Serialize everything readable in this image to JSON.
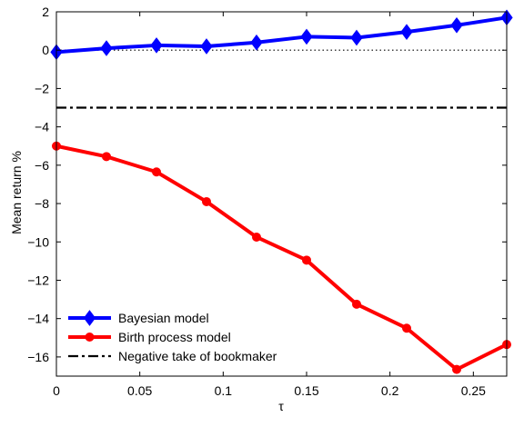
{
  "chart_data": {
    "type": "line",
    "xlabel": "τ",
    "ylabel": "Mean return %",
    "xlim": [
      0,
      0.27
    ],
    "ylim": [
      -17,
      2
    ],
    "xticks": [
      0,
      0.05,
      0.1,
      0.15,
      0.2,
      0.25
    ],
    "xtick_labels": [
      "0",
      "0.05",
      "0.1",
      "0.15",
      "0.2",
      "0.25"
    ],
    "yticks": [
      2,
      0,
      -2,
      -4,
      -6,
      -8,
      -10,
      -12,
      -14,
      -16
    ],
    "ytick_labels": [
      "2",
      "0",
      "−2",
      "−4",
      "−6",
      "−8",
      "−10",
      "−12",
      "−14",
      "−16"
    ],
    "legend_position": "bottom-left",
    "grid": false,
    "series": [
      {
        "name": "Bayesian model",
        "color": "#0000ff",
        "marker": "diamond",
        "x": [
          0,
          0.03,
          0.06,
          0.09,
          0.12,
          0.15,
          0.18,
          0.21,
          0.24,
          0.27
        ],
        "y": [
          -0.1,
          0.1,
          0.25,
          0.2,
          0.4,
          0.7,
          0.65,
          0.95,
          1.3,
          1.7
        ]
      },
      {
        "name": "Birth process model",
        "color": "#ff0000",
        "marker": "circle",
        "x": [
          0,
          0.03,
          0.06,
          0.09,
          0.12,
          0.15,
          0.18,
          0.21,
          0.24,
          0.27
        ],
        "y": [
          -5.0,
          -5.55,
          -6.35,
          -7.9,
          -9.75,
          -10.95,
          -13.25,
          -14.5,
          -16.65,
          -15.35
        ]
      },
      {
        "name": "Negative take of bookmaker",
        "color": "#000000",
        "marker": "none",
        "linestyle": "dash-dot",
        "x": [
          0,
          0.27
        ],
        "y": [
          -3,
          -3
        ]
      }
    ],
    "reference_lines": [
      {
        "value": 0,
        "orientation": "horizontal",
        "linestyle": "dotted",
        "color": "#000000"
      }
    ]
  }
}
